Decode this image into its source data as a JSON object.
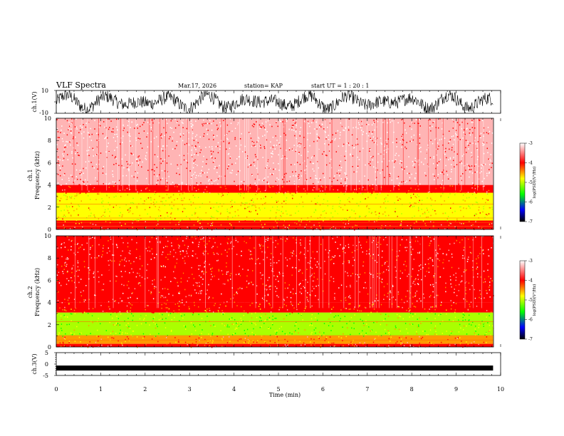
{
  "header": {
    "title": "VLF Spectra",
    "date": "Mar.17, 2026",
    "station": "station= KAP",
    "start": "start  UT  =   1  : 20 : 1"
  },
  "colors": {
    "spec_high": "#ff0000",
    "spec_mid": "#ffff00",
    "spec_low": "#00ff00",
    "background": "#ffffff",
    "line": "#000000"
  },
  "colorbar": {
    "label": "log(PSD)(V²/Hz)",
    "ticks": [
      "-3",
      "-4",
      "-5",
      "-6",
      "-7"
    ],
    "stops": [
      "#ffffff",
      "#ff0000",
      "#ffff00",
      "#00ff00",
      "#0000ff",
      "#000000"
    ]
  },
  "chart_data": [
    {
      "type": "line",
      "name": "ch1-waveform",
      "ylabel": "ch.1(V)",
      "ylim": [
        -10,
        10
      ],
      "yticks": [
        "10",
        "-10"
      ],
      "xlim": [
        0,
        10
      ],
      "duration_min": 9.83,
      "description_values": {
        "amplitude_range_V": [
          -10,
          10
        ]
      }
    },
    {
      "type": "heatmap",
      "name": "ch1-spectrogram",
      "ylabel": "ch.1\nFrequency  (kHz)",
      "ylabel_lines": [
        "ch.1",
        "Frequency  (kHz)"
      ],
      "ylim": [
        0,
        10
      ],
      "yticks": [
        "0",
        "2",
        "4",
        "6",
        "8",
        "10"
      ],
      "xlim": [
        0,
        10
      ],
      "duration_min": 9.83,
      "bands_kHz": [
        {
          "from": 0,
          "to": 0.3,
          "level": -4
        },
        {
          "from": 0.3,
          "to": 0.8,
          "level": -4.2
        },
        {
          "from": 0.8,
          "to": 3.3,
          "level": -4.9
        },
        {
          "from": 3.3,
          "to": 4.0,
          "level": -4.0
        },
        {
          "from": 4.0,
          "to": 10,
          "level": -3.4
        }
      ]
    },
    {
      "type": "heatmap",
      "name": "ch2-spectrogram",
      "ylabel": "ch.2\nFrequency  (kHz)",
      "ylabel_lines": [
        "ch.2",
        "Frequency  (kHz)"
      ],
      "ylim": [
        0,
        10
      ],
      "yticks": [
        "0",
        "2",
        "4",
        "6",
        "8",
        "10"
      ],
      "xlim": [
        0,
        10
      ],
      "duration_min": 9.83,
      "bands_kHz": [
        {
          "from": 0,
          "to": 0.3,
          "level": -4
        },
        {
          "from": 0.3,
          "to": 1.0,
          "level": -4.3
        },
        {
          "from": 1.0,
          "to": 3.1,
          "level": -5.3
        },
        {
          "from": 3.1,
          "to": 4.0,
          "level": -4.2
        },
        {
          "from": 4.0,
          "to": 10,
          "level": -3.8
        }
      ]
    },
    {
      "type": "line",
      "name": "ch3-waveform",
      "ylabel": "ch.3(V)",
      "ylim": [
        -5,
        5
      ],
      "yticks": [
        "5",
        "0",
        "-5"
      ],
      "xlim": [
        0,
        10
      ],
      "duration_min": 9.83,
      "level_V": -1.6
    }
  ],
  "xaxis": {
    "label": "Time  (min)",
    "ticks": [
      "0",
      "1",
      "2",
      "3",
      "4",
      "5",
      "6",
      "7",
      "8",
      "9",
      "10"
    ]
  }
}
